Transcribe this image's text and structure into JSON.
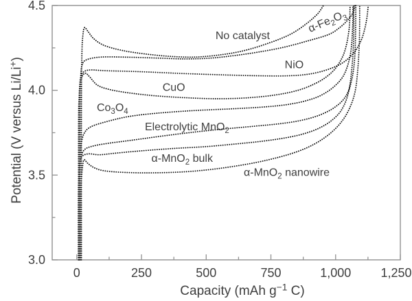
{
  "figure": {
    "background": "#ffffff",
    "text_color": "#3e3e3e",
    "curve_color": "#161616",
    "frame_color": "#909090"
  },
  "chart_data": {
    "type": "line",
    "style": "dotted",
    "title": "",
    "xlabel": "Capacity (mAh g-1 C)",
    "ylabel": "Potential (V versus Li/Li+)",
    "xlabel_parts": [
      {
        "t": "Capacity (mAh g"
      },
      {
        "t": "−1",
        "s": "sup"
      },
      {
        "t": " C)"
      }
    ],
    "ylabel_parts": [
      {
        "t": "Potential (V versus Li/Li"
      },
      {
        "t": "+",
        "s": "sup"
      },
      {
        "t": ")"
      }
    ],
    "xlim": [
      -95,
      1250
    ],
    "ylim": [
      3.0,
      4.5
    ],
    "grid": false,
    "legend": "inline-labels",
    "x_major_ticks": [
      0,
      250,
      500,
      750,
      1000,
      1250
    ],
    "x_minor_ticks": [
      125,
      375,
      625,
      875,
      1125
    ],
    "x_tick_labels": [
      "0",
      "250",
      "500",
      "750",
      "1,000",
      "1,250"
    ],
    "y_major_ticks": [
      4.5,
      4.0,
      3.5,
      3.0
    ],
    "y_minor_ticks": [
      4.25,
      3.75,
      3.25
    ],
    "y_tick_labels": [
      "4.5",
      "4.0",
      "3.5",
      "3.0"
    ],
    "series": [
      {
        "id": "no-catalyst",
        "name": "No catalyst",
        "label_parts": [
          {
            "t": "No catalyst"
          }
        ],
        "label_at": [
          641,
          4.325
        ],
        "label_rotate": 0,
        "points": [
          [
            18,
            3.0
          ],
          [
            18,
            3.9
          ],
          [
            20,
            4.22
          ],
          [
            24,
            4.33
          ],
          [
            30,
            4.37
          ],
          [
            42,
            4.35
          ],
          [
            65,
            4.305
          ],
          [
            105,
            4.265
          ],
          [
            175,
            4.235
          ],
          [
            260,
            4.215
          ],
          [
            360,
            4.2
          ],
          [
            460,
            4.196
          ],
          [
            560,
            4.21
          ],
          [
            650,
            4.235
          ],
          [
            745,
            4.28
          ],
          [
            825,
            4.33
          ],
          [
            885,
            4.39
          ],
          [
            930,
            4.45
          ],
          [
            953,
            4.5
          ]
        ]
      },
      {
        "id": "alpha-fe2o3",
        "name": "α-Fe2O3",
        "label_parts": [
          {
            "t": "α-Fe"
          },
          {
            "t": "2",
            "s": "sub"
          },
          {
            "t": "O"
          },
          {
            "t": "3",
            "s": "sub"
          }
        ],
        "label_at": [
          973,
          4.41
        ],
        "label_rotate": -23,
        "points": [
          [
            13,
            3.0
          ],
          [
            13,
            3.9
          ],
          [
            15,
            4.08
          ],
          [
            21,
            4.15
          ],
          [
            38,
            4.18
          ],
          [
            95,
            4.196
          ],
          [
            200,
            4.195
          ],
          [
            310,
            4.19
          ],
          [
            420,
            4.185
          ],
          [
            520,
            4.19
          ],
          [
            610,
            4.205
          ],
          [
            700,
            4.225
          ],
          [
            795,
            4.252
          ],
          [
            890,
            4.29
          ],
          [
            975,
            4.33
          ],
          [
            1020,
            4.375
          ],
          [
            1050,
            4.42
          ],
          [
            1068,
            4.46
          ],
          [
            1075,
            4.5
          ]
        ]
      },
      {
        "id": "nio",
        "name": "NiO",
        "label_parts": [
          {
            "t": "NiO"
          }
        ],
        "label_at": [
          840,
          4.152
        ],
        "label_rotate": 0,
        "points": [
          [
            9,
            3.0
          ],
          [
            9,
            3.85
          ],
          [
            11,
            4.02
          ],
          [
            16,
            4.08
          ],
          [
            28,
            4.11
          ],
          [
            55,
            4.12
          ],
          [
            115,
            4.115
          ],
          [
            240,
            4.11
          ],
          [
            390,
            4.1
          ],
          [
            540,
            4.092
          ],
          [
            690,
            4.086
          ],
          [
            810,
            4.085
          ],
          [
            895,
            4.095
          ],
          [
            965,
            4.12
          ],
          [
            1025,
            4.16
          ],
          [
            1070,
            4.22
          ],
          [
            1100,
            4.3
          ],
          [
            1118,
            4.4
          ],
          [
            1126,
            4.5
          ]
        ]
      },
      {
        "id": "cuo",
        "name": "CuO",
        "label_parts": [
          {
            "t": "CuO"
          }
        ],
        "label_at": [
          375,
          4.018
        ],
        "label_rotate": 0,
        "points": [
          [
            7,
            3.0
          ],
          [
            7,
            3.8
          ],
          [
            9,
            3.95
          ],
          [
            13,
            4.03
          ],
          [
            22,
            4.085
          ],
          [
            35,
            4.1
          ],
          [
            52,
            4.075
          ],
          [
            80,
            4.03
          ],
          [
            125,
            4.005
          ],
          [
            200,
            3.985
          ],
          [
            300,
            3.968
          ],
          [
            420,
            3.956
          ],
          [
            545,
            3.95
          ],
          [
            665,
            3.956
          ],
          [
            765,
            3.972
          ],
          [
            850,
            3.998
          ],
          [
            915,
            4.035
          ],
          [
            965,
            4.08
          ],
          [
            1005,
            4.14
          ],
          [
            1035,
            4.23
          ],
          [
            1052,
            4.36
          ],
          [
            1056,
            4.5
          ]
        ]
      },
      {
        "id": "co3o4",
        "name": "Co3O4",
        "label_parts": [
          {
            "t": "Co"
          },
          {
            "t": "3",
            "s": "sub"
          },
          {
            "t": "O"
          },
          {
            "t": "4",
            "s": "sub"
          }
        ],
        "label_at": [
          138,
          3.9
        ],
        "label_rotate": 0,
        "points": [
          [
            11,
            3.0
          ],
          [
            11,
            3.42
          ],
          [
            13,
            3.6
          ],
          [
            17,
            3.68
          ],
          [
            28,
            3.745
          ],
          [
            55,
            3.785
          ],
          [
            115,
            3.815
          ],
          [
            200,
            3.845
          ],
          [
            310,
            3.865
          ],
          [
            450,
            3.88
          ],
          [
            590,
            3.89
          ],
          [
            710,
            3.9
          ],
          [
            810,
            3.915
          ],
          [
            890,
            3.94
          ],
          [
            950,
            3.975
          ],
          [
            1000,
            4.03
          ],
          [
            1035,
            4.1
          ],
          [
            1058,
            4.22
          ],
          [
            1066,
            4.38
          ],
          [
            1067,
            4.5
          ]
        ]
      },
      {
        "id": "electrolytic-mno2",
        "name": "Electrolytic MnO2",
        "label_parts": [
          {
            "t": "Electrolytic MnO"
          },
          {
            "t": "2",
            "s": "sub"
          }
        ],
        "label_at": [
          426,
          3.787
        ],
        "label_rotate": 0,
        "points": [
          [
            9,
            3.0
          ],
          [
            9,
            3.4
          ],
          [
            11,
            3.52
          ],
          [
            16,
            3.6
          ],
          [
            30,
            3.65
          ],
          [
            65,
            3.672
          ],
          [
            125,
            3.688
          ],
          [
            210,
            3.705
          ],
          [
            320,
            3.728
          ],
          [
            445,
            3.752
          ],
          [
            570,
            3.772
          ],
          [
            685,
            3.788
          ],
          [
            785,
            3.803
          ],
          [
            865,
            3.822
          ],
          [
            935,
            3.852
          ],
          [
            995,
            3.898
          ],
          [
            1038,
            3.962
          ],
          [
            1062,
            4.06
          ],
          [
            1075,
            4.22
          ],
          [
            1078,
            4.5
          ]
        ]
      },
      {
        "id": "alpha-mno2-bulk",
        "name": "α-MnO2 bulk",
        "label_parts": [
          {
            "t": "α-MnO"
          },
          {
            "t": "2",
            "s": "sub"
          },
          {
            "t": " bulk"
          }
        ],
        "label_at": [
          407,
          3.6
        ],
        "label_rotate": 0,
        "points": [
          [
            6,
            3.0
          ],
          [
            6,
            3.38
          ],
          [
            8,
            3.5
          ],
          [
            12,
            3.57
          ],
          [
            20,
            3.61
          ],
          [
            45,
            3.625
          ],
          [
            90,
            3.62
          ],
          [
            155,
            3.63
          ],
          [
            250,
            3.643
          ],
          [
            375,
            3.657
          ],
          [
            500,
            3.668
          ],
          [
            618,
            3.684
          ],
          [
            718,
            3.7
          ],
          [
            808,
            3.72
          ],
          [
            878,
            3.744
          ],
          [
            938,
            3.778
          ],
          [
            988,
            3.826
          ],
          [
            1025,
            3.89
          ],
          [
            1050,
            3.99
          ],
          [
            1064,
            4.15
          ],
          [
            1070,
            4.32
          ],
          [
            1070,
            4.5
          ]
        ]
      },
      {
        "id": "alpha-mno2-nanowire",
        "name": "α-MnO2 nanowire",
        "label_parts": [
          {
            "t": "α-MnO"
          },
          {
            "t": "2",
            "s": "sub"
          },
          {
            "t": " nanowire"
          }
        ],
        "label_at": [
          811,
          3.517
        ],
        "label_rotate": 0,
        "points": [
          [
            16,
            3.0
          ],
          [
            16,
            3.36
          ],
          [
            18,
            3.47
          ],
          [
            22,
            3.545
          ],
          [
            28,
            3.59
          ],
          [
            42,
            3.57
          ],
          [
            65,
            3.545
          ],
          [
            100,
            3.527
          ],
          [
            165,
            3.517
          ],
          [
            265,
            3.513
          ],
          [
            390,
            3.517
          ],
          [
            500,
            3.53
          ],
          [
            600,
            3.55
          ],
          [
            695,
            3.575
          ],
          [
            780,
            3.605
          ],
          [
            855,
            3.64
          ],
          [
            918,
            3.683
          ],
          [
            972,
            3.737
          ],
          [
            1018,
            3.805
          ],
          [
            1052,
            3.888
          ],
          [
            1075,
            3.99
          ],
          [
            1086,
            4.13
          ],
          [
            1092,
            4.3
          ],
          [
            1093,
            4.5
          ]
        ]
      }
    ]
  }
}
